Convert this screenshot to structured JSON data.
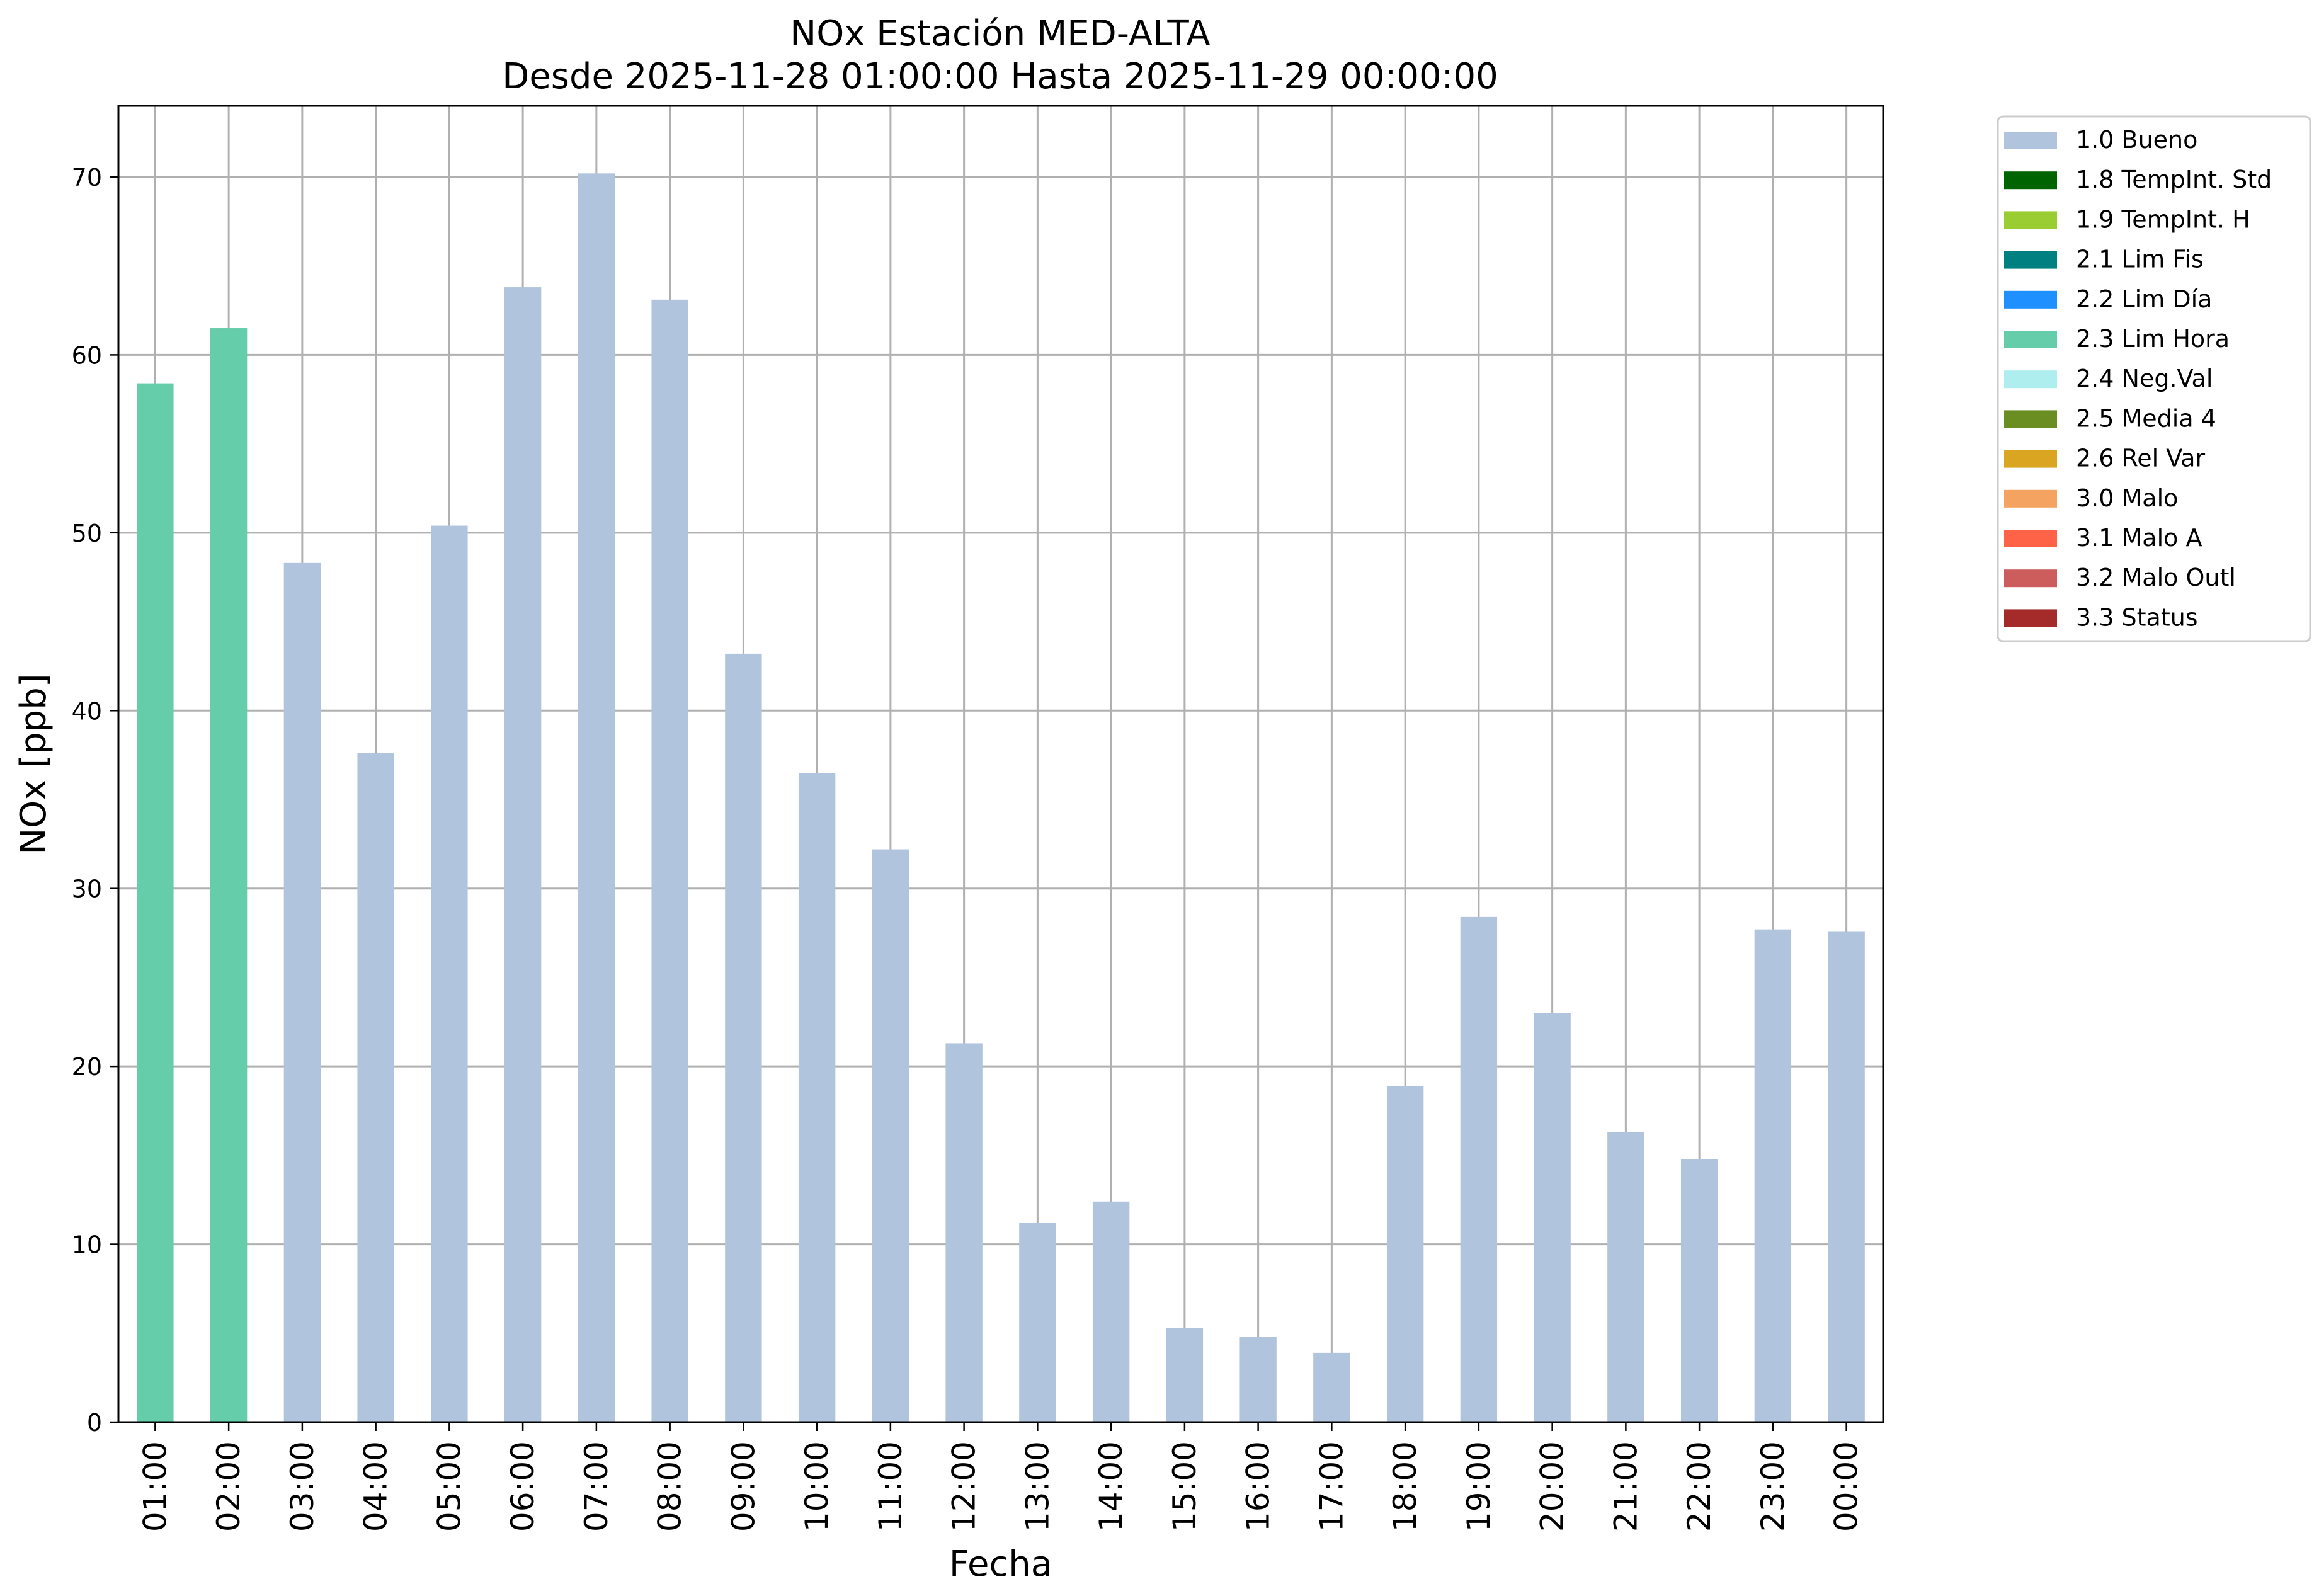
{
  "chart_data": {
    "type": "bar",
    "title": "NOx Estación MED-ALTA",
    "subtitle": "Desde 2025-11-28 01:00:00 Hasta 2025-11-29 00:00:00",
    "xlabel": "Fecha",
    "ylabel": "NOx [ppb]",
    "ylim": [
      0,
      74
    ],
    "yticks": [
      0,
      10,
      20,
      30,
      40,
      50,
      60,
      70
    ],
    "grid": true,
    "legend_position": "outside-top-right",
    "categories": [
      "01:00",
      "02:00",
      "03:00",
      "04:00",
      "05:00",
      "06:00",
      "07:00",
      "08:00",
      "09:00",
      "10:00",
      "11:00",
      "12:00",
      "13:00",
      "14:00",
      "15:00",
      "16:00",
      "17:00",
      "18:00",
      "19:00",
      "20:00",
      "21:00",
      "22:00",
      "23:00",
      "00:00"
    ],
    "values": [
      58.4,
      61.5,
      48.3,
      37.6,
      50.4,
      63.8,
      70.2,
      63.1,
      43.2,
      36.5,
      32.2,
      21.3,
      11.2,
      12.4,
      5.3,
      4.8,
      3.9,
      18.9,
      28.4,
      23.0,
      16.3,
      14.8,
      27.7,
      27.6
    ],
    "bar_flags": [
      "2.3 Lim Hora",
      "2.3 Lim Hora",
      "1.0 Bueno",
      "1.0 Bueno",
      "1.0 Bueno",
      "1.0 Bueno",
      "1.0 Bueno",
      "1.0 Bueno",
      "1.0 Bueno",
      "1.0 Bueno",
      "1.0 Bueno",
      "1.0 Bueno",
      "1.0 Bueno",
      "1.0 Bueno",
      "1.0 Bueno",
      "1.0 Bueno",
      "1.0 Bueno",
      "1.0 Bueno",
      "1.0 Bueno",
      "1.0 Bueno",
      "1.0 Bueno",
      "1.0 Bueno",
      "1.0 Bueno",
      "1.0 Bueno"
    ],
    "legend": [
      {
        "label": "1.0 Bueno",
        "color": "#b0c4de"
      },
      {
        "label": "1.8 TempInt. Std",
        "color": "#006400"
      },
      {
        "label": "1.9 TempInt. H",
        "color": "#9acd32"
      },
      {
        "label": "2.1 Lim Fis",
        "color": "#008080"
      },
      {
        "label": "2.2 Lim Día",
        "color": "#1e90ff"
      },
      {
        "label": "2.3 Lim Hora",
        "color": "#66cdaa"
      },
      {
        "label": "2.4 Neg.Val",
        "color": "#afeeee"
      },
      {
        "label": "2.5 Media 4",
        "color": "#6b8e23"
      },
      {
        "label": "2.6 Rel Var",
        "color": "#daa520"
      },
      {
        "label": "3.0 Malo",
        "color": "#f4a460"
      },
      {
        "label": "3.1 Malo A",
        "color": "#ff6347"
      },
      {
        "label": "3.2 Malo Outl",
        "color": "#cd5c5c"
      },
      {
        "label": "3.3 Status",
        "color": "#a52a2a"
      }
    ]
  }
}
